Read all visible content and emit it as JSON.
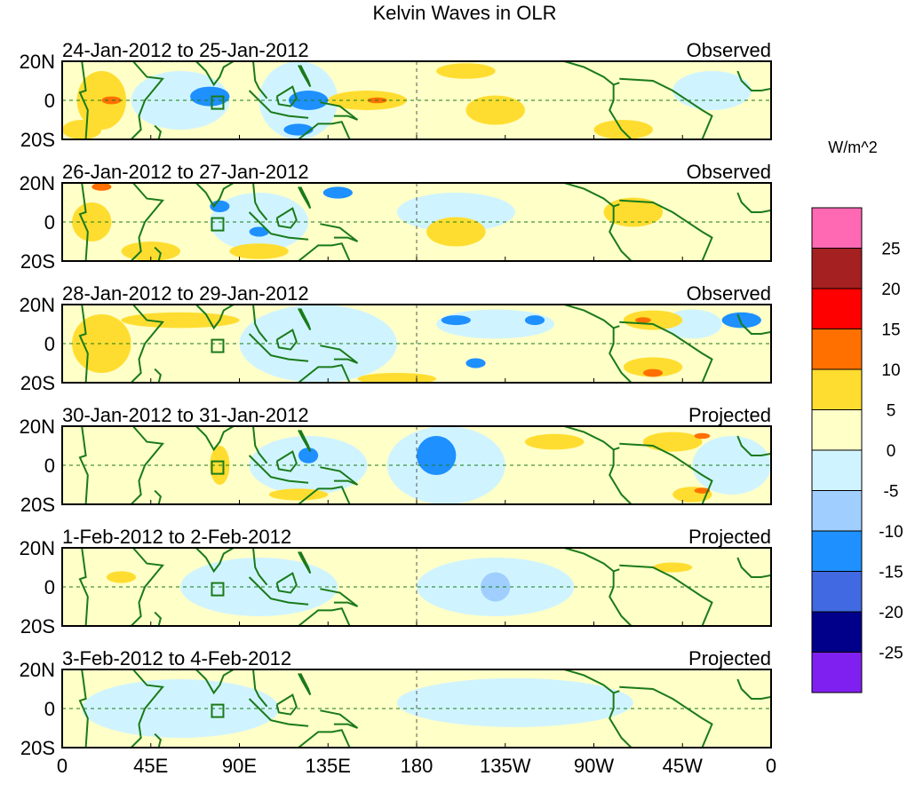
{
  "chart_data": {
    "type": "heatmap",
    "title": "Kelvin Waves in OLR",
    "units": "W/m^2",
    "x_ticks": [
      "0",
      "45E",
      "90E",
      "135E",
      "180",
      "135W",
      "90W",
      "45W",
      "0"
    ],
    "y_ticks": [
      "20N",
      "0",
      "20S"
    ],
    "xlim": [
      0,
      360
    ],
    "ylim": [
      -20,
      20
    ],
    "colorbar": {
      "levels": [
        "-25",
        "-20",
        "-15",
        "-10",
        "-5",
        "0",
        "5",
        "10",
        "15",
        "20",
        "25"
      ],
      "colors": [
        "#8020F0",
        "#00008B",
        "#4169E1",
        "#1E90FF",
        "#A0CFFF",
        "#D0F4FF",
        "#FFFFC8",
        "#FFDD30",
        "#FF7000",
        "#FF0000",
        "#A52020",
        "#FF69B4"
      ]
    },
    "panels": [
      {
        "title": "24-Jan-2012 to 25-Jan-2012",
        "label": "Observed",
        "features": [
          [
            60,
            0,
            -3,
            50,
            30
          ],
          [
            120,
            0,
            -3,
            40,
            40
          ],
          [
            330,
            5,
            -3,
            40,
            20
          ],
          [
            20,
            0,
            7,
            25,
            30
          ],
          [
            10,
            -15,
            7,
            20,
            10
          ],
          [
            155,
            0,
            7,
            40,
            10
          ],
          [
            220,
            -5,
            7,
            30,
            15
          ],
          [
            205,
            15,
            7,
            30,
            8
          ],
          [
            285,
            -15,
            7,
            30,
            10
          ],
          [
            75,
            2,
            -12,
            20,
            10
          ],
          [
            125,
            0,
            -12,
            20,
            10
          ],
          [
            120,
            -15,
            -12,
            15,
            6
          ],
          [
            25,
            0,
            12,
            10,
            4
          ],
          [
            160,
            0,
            12,
            10,
            3
          ]
        ]
      },
      {
        "title": "26-Jan-2012 to 27-Jan-2012",
        "label": "Observed",
        "features": [
          [
            100,
            0,
            -3,
            50,
            30
          ],
          [
            200,
            5,
            -3,
            60,
            20
          ],
          [
            15,
            0,
            7,
            20,
            20
          ],
          [
            45,
            -15,
            7,
            30,
            10
          ],
          [
            290,
            5,
            7,
            30,
            15
          ],
          [
            200,
            -5,
            7,
            30,
            15
          ],
          [
            100,
            -15,
            7,
            30,
            8
          ],
          [
            80,
            8,
            -12,
            10,
            6
          ],
          [
            140,
            15,
            -12,
            15,
            6
          ],
          [
            100,
            -5,
            -12,
            10,
            5
          ],
          [
            20,
            18,
            12,
            10,
            4
          ]
        ]
      },
      {
        "title": "28-Jan-2012 to 29-Jan-2012",
        "label": "Observed",
        "features": [
          [
            130,
            0,
            -5,
            80,
            40
          ],
          [
            220,
            10,
            -5,
            60,
            15
          ],
          [
            320,
            10,
            -5,
            30,
            15
          ],
          [
            20,
            0,
            7,
            30,
            30
          ],
          [
            300,
            12,
            7,
            30,
            10
          ],
          [
            300,
            -12,
            7,
            30,
            10
          ],
          [
            170,
            -18,
            7,
            40,
            6
          ],
          [
            60,
            12,
            7,
            60,
            8
          ],
          [
            200,
            12,
            -12,
            15,
            5
          ],
          [
            240,
            12,
            -12,
            10,
            5
          ],
          [
            210,
            -10,
            -12,
            10,
            5
          ],
          [
            345,
            12,
            -12,
            20,
            8
          ],
          [
            300,
            -15,
            12,
            10,
            4
          ],
          [
            295,
            12,
            12,
            8,
            3
          ]
        ]
      },
      {
        "title": "30-Jan-2012 to 31-Jan-2012",
        "label": "Projected",
        "features": [
          [
            125,
            0,
            -5,
            60,
            30
          ],
          [
            195,
            0,
            -5,
            60,
            40
          ],
          [
            340,
            0,
            -3,
            40,
            30
          ],
          [
            190,
            5,
            -12,
            20,
            20
          ],
          [
            125,
            5,
            -12,
            10,
            8
          ],
          [
            80,
            0,
            7,
            10,
            20
          ],
          [
            120,
            -15,
            7,
            30,
            6
          ],
          [
            250,
            12,
            7,
            30,
            8
          ],
          [
            310,
            12,
            7,
            30,
            10
          ],
          [
            320,
            -15,
            7,
            20,
            8
          ],
          [
            325,
            15,
            12,
            8,
            3
          ],
          [
            325,
            -13,
            12,
            8,
            3
          ]
        ]
      },
      {
        "title": "1-Feb-2012 to 2-Feb-2012",
        "label": "Projected",
        "features": [
          [
            100,
            0,
            -3,
            80,
            30
          ],
          [
            220,
            0,
            -3,
            80,
            30
          ],
          [
            220,
            0,
            -8,
            15,
            15
          ],
          [
            30,
            5,
            7,
            15,
            6
          ],
          [
            310,
            10,
            7,
            20,
            5
          ]
        ]
      },
      {
        "title": "3-Feb-2012 to 4-Feb-2012",
        "label": "Projected",
        "features": [
          [
            60,
            0,
            -3,
            100,
            30
          ],
          [
            230,
            3,
            -3,
            120,
            25
          ],
          [
            215,
            0,
            -3,
            20,
            8
          ]
        ]
      }
    ]
  }
}
